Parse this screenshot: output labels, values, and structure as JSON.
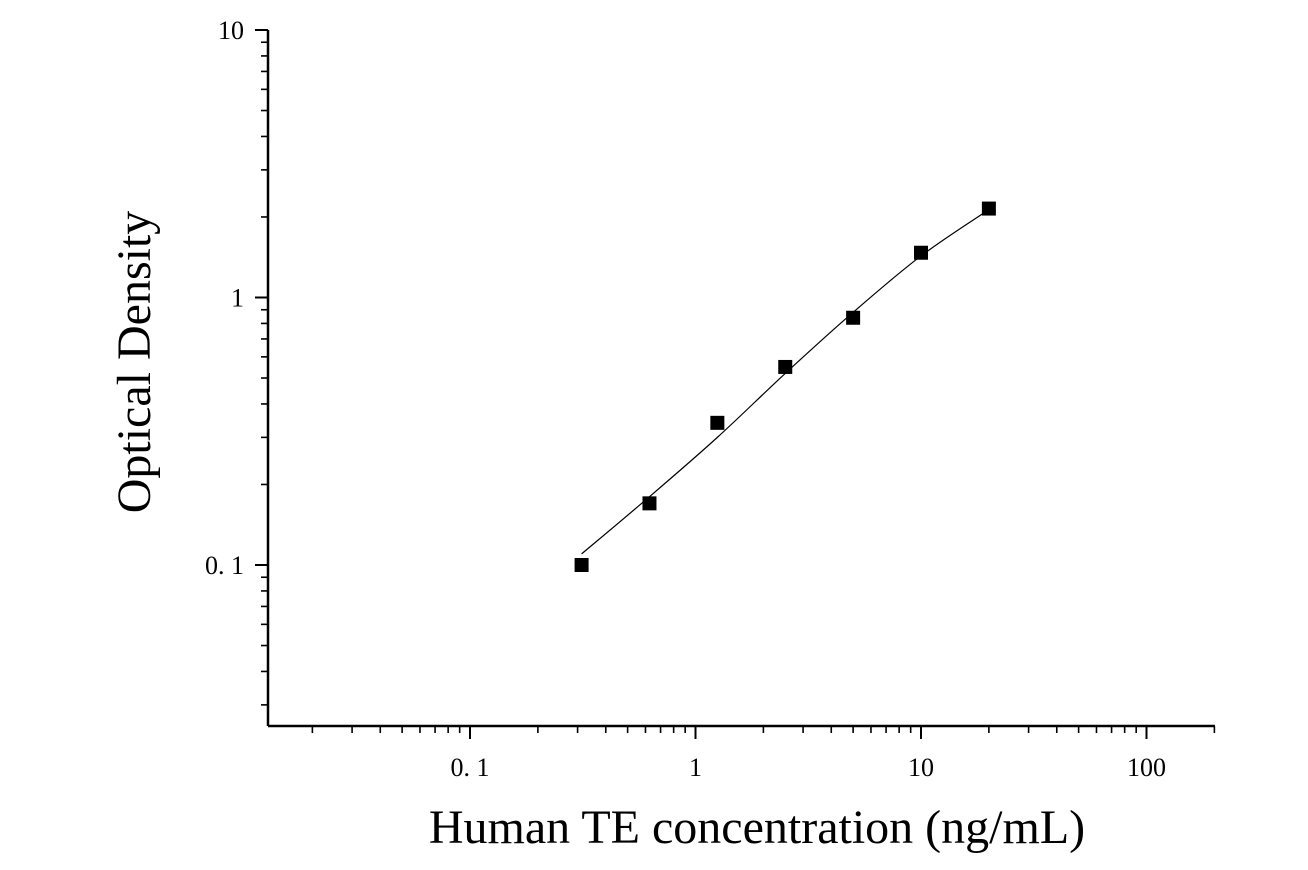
{
  "chart_data": {
    "type": "scatter",
    "title": "",
    "xlabel": "Human TE concentration (ng/mL)",
    "ylabel": "Optical Density",
    "xscale": "log",
    "yscale": "log",
    "xlim": [
      0.012,
      200
    ],
    "ylim": [
      0.028,
      10
    ],
    "x_tick_labels": [
      {
        "value": 0.1,
        "label": "0. 1"
      },
      {
        "value": 1,
        "label": "1"
      },
      {
        "value": 10,
        "label": "10"
      },
      {
        "value": 100,
        "label": "100"
      }
    ],
    "y_tick_labels": [
      {
        "value": 0.1,
        "label": "0. 1"
      },
      {
        "value": 1,
        "label": "1"
      },
      {
        "value": 10,
        "label": "10"
      }
    ],
    "grid": false,
    "legend": "none",
    "marker": "square",
    "series": [
      {
        "points": [
          {
            "x": 0.3125,
            "y": 0.1
          },
          {
            "x": 0.625,
            "y": 0.17
          },
          {
            "x": 1.25,
            "y": 0.34
          },
          {
            "x": 2.5,
            "y": 0.55
          },
          {
            "x": 5,
            "y": 0.84
          },
          {
            "x": 10,
            "y": 1.47
          },
          {
            "x": 20,
            "y": 2.15
          }
        ]
      }
    ],
    "fit_curve": [
      {
        "x": 0.3125,
        "y": 0.11
      },
      {
        "x": 0.625,
        "y": 0.18
      },
      {
        "x": 1.25,
        "y": 0.3
      },
      {
        "x": 2.5,
        "y": 0.52
      },
      {
        "x": 5,
        "y": 0.88
      },
      {
        "x": 10,
        "y": 1.43
      },
      {
        "x": 20,
        "y": 2.13
      }
    ],
    "colors": {
      "marker": "#000000",
      "line": "#000000",
      "axis": "#000000"
    }
  }
}
